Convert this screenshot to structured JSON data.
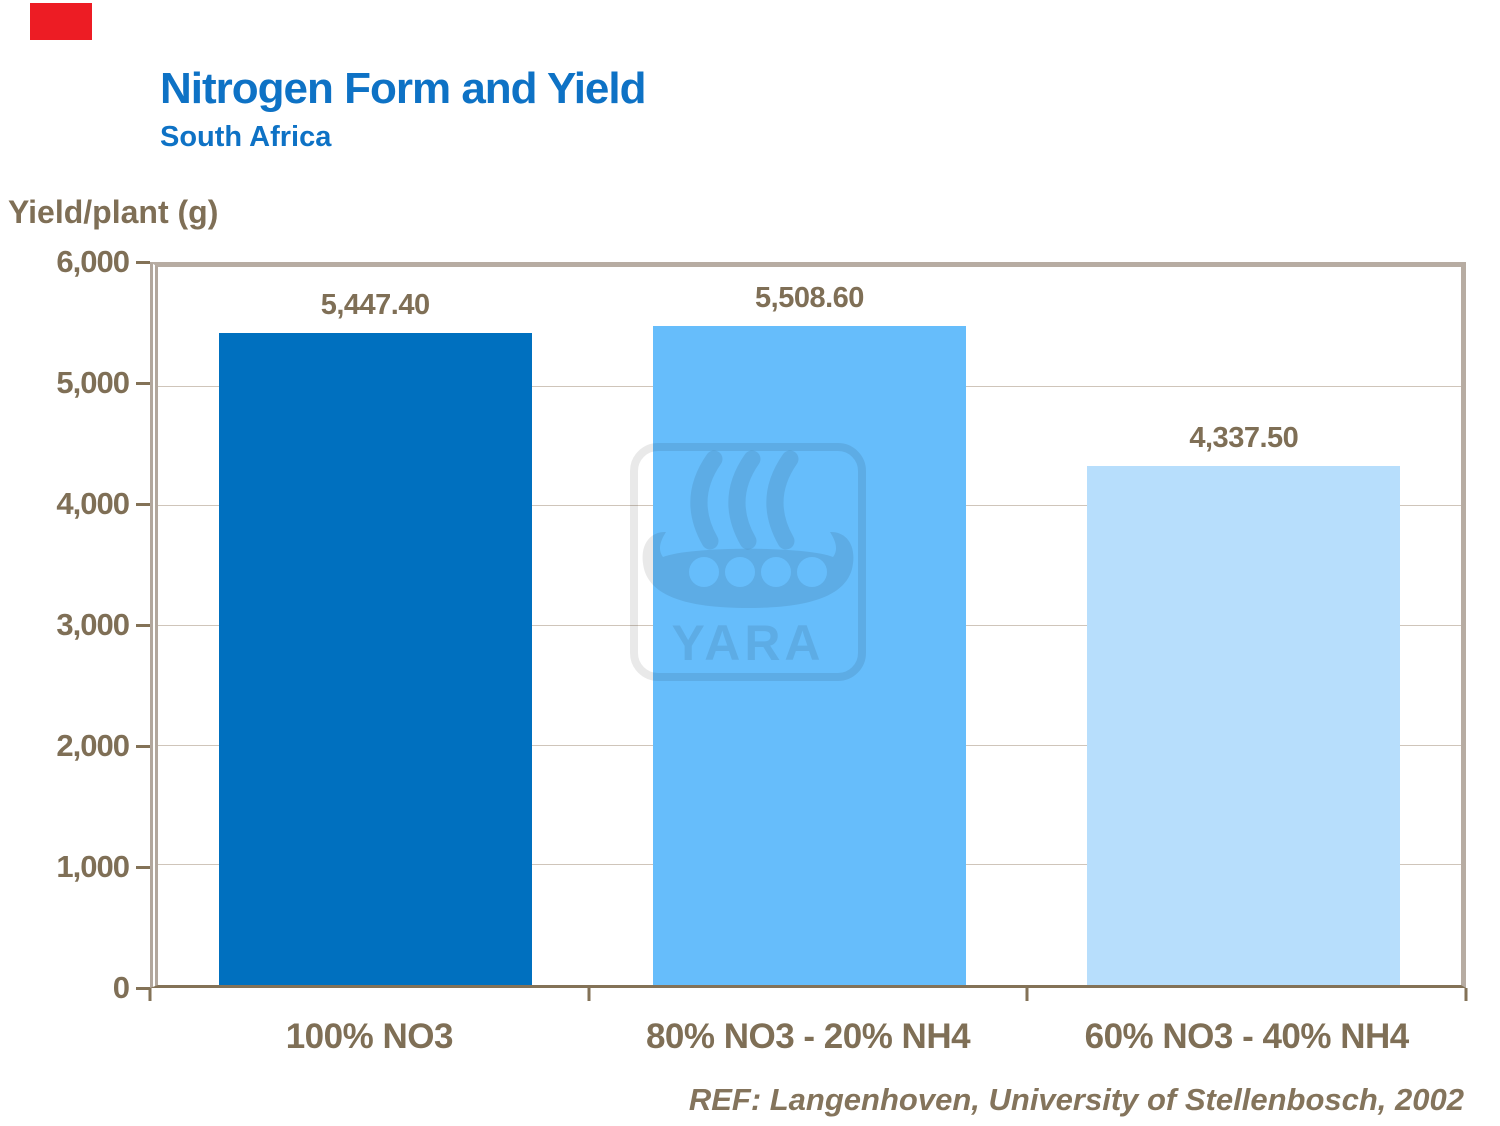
{
  "slide": {
    "title": "Nitrogen Form and Yield",
    "subtitle": "South Africa",
    "y_axis_title": "Yield/plant (g)",
    "footer": "REF: Langenhoven, University of Stellenbosch, 2002"
  },
  "watermark": {
    "text": "YARA",
    "description": "translucent Yara viking-ship logo watermark"
  },
  "colors": {
    "title_blue": "#0e72c5",
    "taupe_text": "#7f6f56",
    "red_square": "#ed1c24",
    "plot_border": "#b7aca2",
    "gridline": "#cfc5ba",
    "axis_line": "#837257",
    "bar_colors": [
      "#0070bf",
      "#66bdfb",
      "#b7defc"
    ]
  },
  "chart_data": {
    "type": "bar",
    "title": "Nitrogen Form and Yield",
    "subtitle": "South Africa",
    "ylabel": "Yield/plant (g)",
    "xlabel": "",
    "categories": [
      "100% NO3",
      "80% NO3 - 20% NH4",
      "60% NO3 - 40% NH4"
    ],
    "values": [
      5447.4,
      5508.6,
      4337.5
    ],
    "value_labels": [
      "5,447.40",
      "5,508.60",
      "4,337.50"
    ],
    "ylim": [
      0,
      6000
    ],
    "ytick_step": 1000,
    "ytick_labels": [
      "6,000",
      "5,000",
      "4,000",
      "3,000",
      "2,000",
      "1,000",
      "0"
    ],
    "grid": true,
    "legend_position": "none",
    "annotation": "REF: Langenhoven, University of Stellenbosch, 2002"
  }
}
